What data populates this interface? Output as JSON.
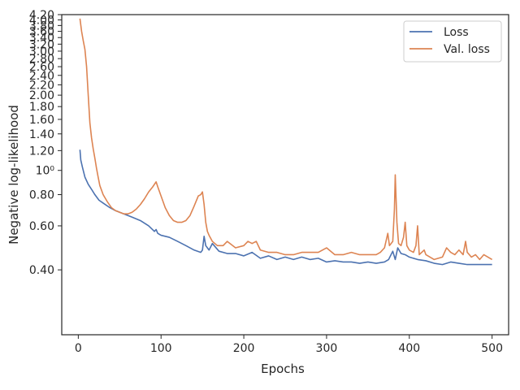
{
  "chart_data": {
    "type": "line",
    "xlabel": "Epochs",
    "ylabel": "Negative log-likelihood",
    "xlim": [
      -20,
      520
    ],
    "ylim": [
      0.22,
      4.2
    ],
    "y_scale": "log",
    "grid": false,
    "legend_position": "top-right",
    "x_ticks": [
      {
        "value": 0,
        "label": "0"
      },
      {
        "value": 100,
        "label": "100"
      },
      {
        "value": 200,
        "label": "200"
      },
      {
        "value": 300,
        "label": "300"
      },
      {
        "value": 400,
        "label": "400"
      },
      {
        "value": 500,
        "label": "500"
      }
    ],
    "y_ticks": [
      {
        "value": 0.4,
        "label": "0.40"
      },
      {
        "value": 0.6,
        "label": "0.60"
      },
      {
        "value": 0.8,
        "label": "0.80"
      },
      {
        "value": 1.0,
        "label": "10⁰"
      },
      {
        "value": 1.2,
        "label": "1.20"
      },
      {
        "value": 1.4,
        "label": "1.40"
      },
      {
        "value": 1.6,
        "label": "1.60"
      },
      {
        "value": 1.8,
        "label": "1.80"
      },
      {
        "value": 2.0,
        "label": "2.00"
      },
      {
        "value": 2.2,
        "label": "2.20"
      },
      {
        "value": 2.4,
        "label": "2.40"
      },
      {
        "value": 2.6,
        "label": "2.60"
      },
      {
        "value": 2.8,
        "label": "2.80"
      },
      {
        "value": 3.0,
        "label": "3.00"
      },
      {
        "value": 3.2,
        "label": "3.20"
      },
      {
        "value": 3.4,
        "label": "3.40"
      },
      {
        "value": 3.6,
        "label": "3.60"
      },
      {
        "value": 3.8,
        "label": "3.80"
      },
      {
        "value": 4.0,
        "label": "4.00"
      },
      {
        "value": 4.2,
        "label": "4.20"
      }
    ],
    "series": [
      {
        "name": "Loss",
        "color": "#4c72b0",
        "points": [
          [
            2,
            1.21
          ],
          [
            3,
            1.1
          ],
          [
            5,
            1.03
          ],
          [
            8,
            0.94
          ],
          [
            12,
            0.88
          ],
          [
            16,
            0.84
          ],
          [
            20,
            0.8
          ],
          [
            25,
            0.76
          ],
          [
            30,
            0.74
          ],
          [
            38,
            0.71
          ],
          [
            45,
            0.69
          ],
          [
            55,
            0.67
          ],
          [
            65,
            0.65
          ],
          [
            75,
            0.63
          ],
          [
            85,
            0.6
          ],
          [
            92,
            0.57
          ],
          [
            94,
            0.58
          ],
          [
            96,
            0.56
          ],
          [
            100,
            0.55
          ],
          [
            110,
            0.54
          ],
          [
            120,
            0.52
          ],
          [
            130,
            0.5
          ],
          [
            140,
            0.48
          ],
          [
            148,
            0.47
          ],
          [
            150,
            0.48
          ],
          [
            152,
            0.545
          ],
          [
            154,
            0.5
          ],
          [
            158,
            0.48
          ],
          [
            162,
            0.51
          ],
          [
            170,
            0.475
          ],
          [
            180,
            0.465
          ],
          [
            190,
            0.465
          ],
          [
            200,
            0.455
          ],
          [
            210,
            0.47
          ],
          [
            220,
            0.445
          ],
          [
            230,
            0.455
          ],
          [
            240,
            0.44
          ],
          [
            250,
            0.45
          ],
          [
            260,
            0.44
          ],
          [
            270,
            0.45
          ],
          [
            280,
            0.44
          ],
          [
            290,
            0.445
          ],
          [
            300,
            0.43
          ],
          [
            310,
            0.435
          ],
          [
            320,
            0.43
          ],
          [
            330,
            0.43
          ],
          [
            340,
            0.425
          ],
          [
            350,
            0.43
          ],
          [
            360,
            0.425
          ],
          [
            370,
            0.43
          ],
          [
            375,
            0.44
          ],
          [
            380,
            0.475
          ],
          [
            383,
            0.44
          ],
          [
            386,
            0.49
          ],
          [
            390,
            0.465
          ],
          [
            395,
            0.46
          ],
          [
            400,
            0.45
          ],
          [
            410,
            0.44
          ],
          [
            420,
            0.435
          ],
          [
            430,
            0.425
          ],
          [
            440,
            0.42
          ],
          [
            450,
            0.43
          ],
          [
            460,
            0.425
          ],
          [
            470,
            0.42
          ],
          [
            480,
            0.42
          ],
          [
            490,
            0.42
          ],
          [
            500,
            0.42
          ]
        ]
      },
      {
        "name": "Val. loss",
        "color": "#dd8452",
        "points": [
          [
            2,
            4.05
          ],
          [
            4,
            3.6
          ],
          [
            6,
            3.3
          ],
          [
            8,
            3.05
          ],
          [
            10,
            2.6
          ],
          [
            12,
            2.0
          ],
          [
            14,
            1.55
          ],
          [
            16,
            1.35
          ],
          [
            18,
            1.22
          ],
          [
            20,
            1.12
          ],
          [
            22,
            1.02
          ],
          [
            24,
            0.94
          ],
          [
            26,
            0.87
          ],
          [
            30,
            0.8
          ],
          [
            35,
            0.75
          ],
          [
            40,
            0.71
          ],
          [
            45,
            0.69
          ],
          [
            50,
            0.68
          ],
          [
            55,
            0.67
          ],
          [
            60,
            0.67
          ],
          [
            65,
            0.68
          ],
          [
            70,
            0.7
          ],
          [
            75,
            0.73
          ],
          [
            80,
            0.77
          ],
          [
            85,
            0.82
          ],
          [
            90,
            0.86
          ],
          [
            94,
            0.9
          ],
          [
            96,
            0.86
          ],
          [
            100,
            0.79
          ],
          [
            105,
            0.71
          ],
          [
            110,
            0.66
          ],
          [
            115,
            0.63
          ],
          [
            120,
            0.62
          ],
          [
            125,
            0.62
          ],
          [
            130,
            0.63
          ],
          [
            135,
            0.66
          ],
          [
            140,
            0.72
          ],
          [
            145,
            0.79
          ],
          [
            148,
            0.8
          ],
          [
            150,
            0.82
          ],
          [
            152,
            0.73
          ],
          [
            154,
            0.62
          ],
          [
            156,
            0.57
          ],
          [
            158,
            0.55
          ],
          [
            162,
            0.52
          ],
          [
            168,
            0.5
          ],
          [
            175,
            0.5
          ],
          [
            180,
            0.52
          ],
          [
            190,
            0.49
          ],
          [
            200,
            0.5
          ],
          [
            205,
            0.52
          ],
          [
            210,
            0.51
          ],
          [
            215,
            0.52
          ],
          [
            220,
            0.48
          ],
          [
            230,
            0.47
          ],
          [
            240,
            0.47
          ],
          [
            250,
            0.46
          ],
          [
            260,
            0.46
          ],
          [
            270,
            0.47
          ],
          [
            280,
            0.47
          ],
          [
            290,
            0.47
          ],
          [
            300,
            0.49
          ],
          [
            310,
            0.46
          ],
          [
            320,
            0.46
          ],
          [
            330,
            0.47
          ],
          [
            340,
            0.46
          ],
          [
            350,
            0.46
          ],
          [
            360,
            0.46
          ],
          [
            365,
            0.47
          ],
          [
            370,
            0.49
          ],
          [
            374,
            0.56
          ],
          [
            376,
            0.5
          ],
          [
            380,
            0.52
          ],
          [
            382,
            0.7
          ],
          [
            383,
            0.96
          ],
          [
            385,
            0.62
          ],
          [
            387,
            0.51
          ],
          [
            390,
            0.5
          ],
          [
            393,
            0.54
          ],
          [
            395,
            0.62
          ],
          [
            397,
            0.5
          ],
          [
            400,
            0.48
          ],
          [
            405,
            0.47
          ],
          [
            408,
            0.5
          ],
          [
            410,
            0.6
          ],
          [
            412,
            0.46
          ],
          [
            418,
            0.48
          ],
          [
            420,
            0.46
          ],
          [
            425,
            0.45
          ],
          [
            430,
            0.44
          ],
          [
            440,
            0.45
          ],
          [
            445,
            0.49
          ],
          [
            450,
            0.47
          ],
          [
            455,
            0.46
          ],
          [
            460,
            0.48
          ],
          [
            465,
            0.46
          ],
          [
            468,
            0.52
          ],
          [
            470,
            0.47
          ],
          [
            475,
            0.45
          ],
          [
            480,
            0.46
          ],
          [
            485,
            0.44
          ],
          [
            490,
            0.46
          ],
          [
            495,
            0.45
          ],
          [
            500,
            0.44
          ]
        ]
      }
    ]
  }
}
